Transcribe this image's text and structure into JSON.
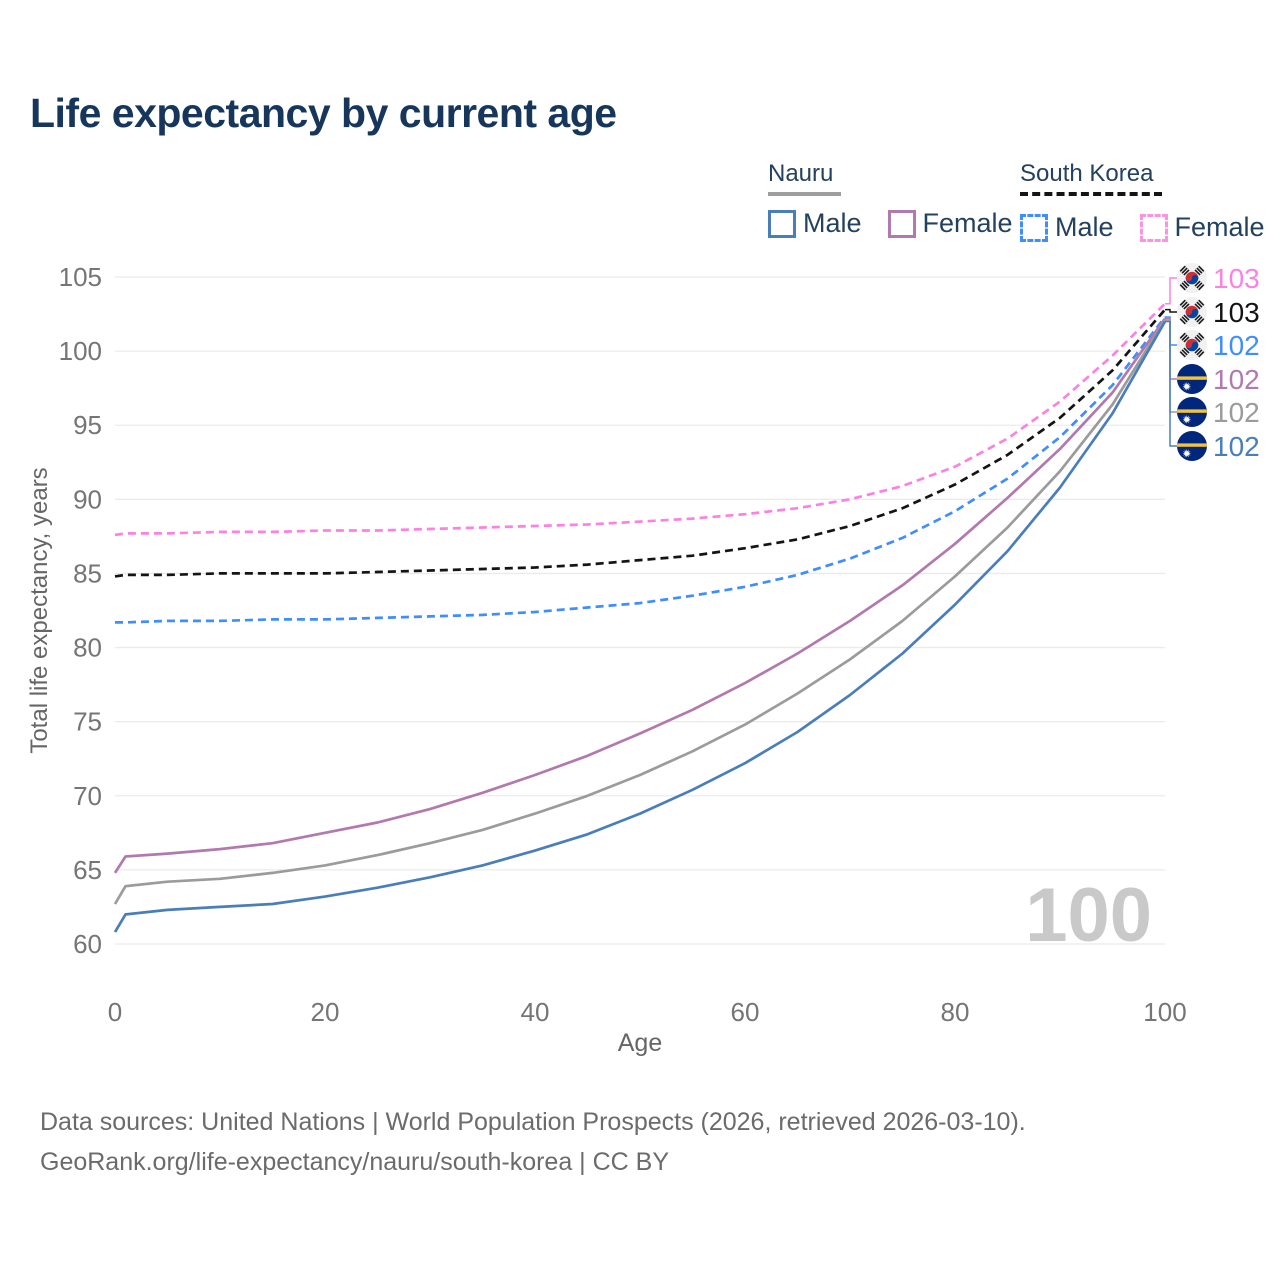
{
  "title": "Life expectancy by current age",
  "legend": {
    "groups": [
      {
        "country": "Nauru",
        "line_style": "solid",
        "underline_color": "#9e9e9e",
        "items": [
          {
            "label": "Male",
            "color": "#4a7ebb",
            "dashed": false
          },
          {
            "label": "Female",
            "color": "#b279ae",
            "dashed": false
          }
        ]
      },
      {
        "country": "South Korea",
        "line_style": "dashed",
        "underline_color": "#141414",
        "items": [
          {
            "label": "Male",
            "color": "#3f8efc",
            "dashed": true
          },
          {
            "label": "Female",
            "color": "#fb93e3",
            "dashed": true
          }
        ]
      }
    ]
  },
  "chart_data": {
    "type": "line",
    "title": "Life expectancy by current age",
    "xlabel": "Age",
    "ylabel": "Total life expectancy, years",
    "xlim": [
      0,
      100
    ],
    "ylim": [
      60,
      105
    ],
    "xticks": [
      0,
      20,
      40,
      60,
      80,
      100
    ],
    "yticks": [
      60,
      65,
      70,
      75,
      80,
      85,
      90,
      95,
      100,
      105
    ],
    "grid": "horizontal",
    "legend_position": "top-right",
    "watermark": "100",
    "x": [
      0,
      1,
      5,
      10,
      15,
      20,
      25,
      30,
      35,
      40,
      45,
      50,
      55,
      60,
      65,
      70,
      75,
      80,
      85,
      90,
      95,
      100
    ],
    "series": [
      {
        "name": "South Korea Female",
        "country": "South Korea",
        "sex": "Female",
        "color": "#fc81e2",
        "dashed": true,
        "end_label": "103",
        "values": [
          87.6,
          87.7,
          87.7,
          87.8,
          87.8,
          87.9,
          87.9,
          88.0,
          88.1,
          88.2,
          88.3,
          88.5,
          88.7,
          89.0,
          89.4,
          90.0,
          90.9,
          92.2,
          94.1,
          96.6,
          99.7,
          103.2
        ]
      },
      {
        "name": "South Korea",
        "country": "South Korea",
        "sex": "Both",
        "color": "#141414",
        "dashed": true,
        "end_label": "103",
        "values": [
          84.8,
          84.9,
          84.9,
          85.0,
          85.0,
          85.0,
          85.1,
          85.2,
          85.3,
          85.4,
          85.6,
          85.9,
          86.2,
          86.7,
          87.3,
          88.2,
          89.4,
          91.0,
          93.0,
          95.5,
          98.7,
          102.8
        ]
      },
      {
        "name": "South Korea Male",
        "country": "South Korea",
        "sex": "Male",
        "color": "#3f8efc",
        "dashed": true,
        "end_label": "102",
        "values": [
          81.7,
          81.7,
          81.8,
          81.8,
          81.9,
          81.9,
          82.0,
          82.1,
          82.2,
          82.4,
          82.7,
          83.0,
          83.5,
          84.1,
          84.9,
          86.0,
          87.4,
          89.2,
          91.4,
          94.2,
          97.7,
          102.3
        ]
      },
      {
        "name": "Nauru Female",
        "country": "Nauru",
        "sex": "Female",
        "color": "#b279ae",
        "dashed": false,
        "end_label": "102",
        "values": [
          64.8,
          65.9,
          66.1,
          66.4,
          66.8,
          67.5,
          68.2,
          69.1,
          70.2,
          71.4,
          72.7,
          74.2,
          75.8,
          77.6,
          79.6,
          81.8,
          84.2,
          87.0,
          90.1,
          93.4,
          97.2,
          102.2
        ]
      },
      {
        "name": "Nauru",
        "country": "Nauru",
        "sex": "Both",
        "color": "#9b9b9b",
        "dashed": false,
        "end_label": "102",
        "values": [
          62.7,
          63.9,
          64.2,
          64.4,
          64.8,
          65.3,
          66.0,
          66.8,
          67.7,
          68.8,
          70.0,
          71.4,
          73.0,
          74.8,
          76.9,
          79.2,
          81.8,
          84.8,
          88.1,
          91.9,
          96.4,
          102.1
        ]
      },
      {
        "name": "Nauru Male",
        "country": "Nauru",
        "sex": "Male",
        "color": "#4a7ebb",
        "dashed": false,
        "end_label": "102",
        "values": [
          60.8,
          62.0,
          62.3,
          62.5,
          62.7,
          63.2,
          63.8,
          64.5,
          65.3,
          66.3,
          67.4,
          68.8,
          70.4,
          72.2,
          74.3,
          76.8,
          79.6,
          82.9,
          86.5,
          90.8,
          95.8,
          102.0
        ]
      }
    ]
  },
  "footer": {
    "line1": "Data sources: United Nations | World Population Prospects (2026, retrieved 2026-03-10).",
    "line2": "GeoRank.org/life-expectancy/nauru/south-korea | CC BY"
  },
  "colors": {
    "title_text": "#17365c",
    "tick_text": "#757575",
    "axis_title_text": "#666666",
    "gridline": "#ebebeb",
    "watermark": "#c9c9c9",
    "footer_text": "#6b6b6b"
  }
}
